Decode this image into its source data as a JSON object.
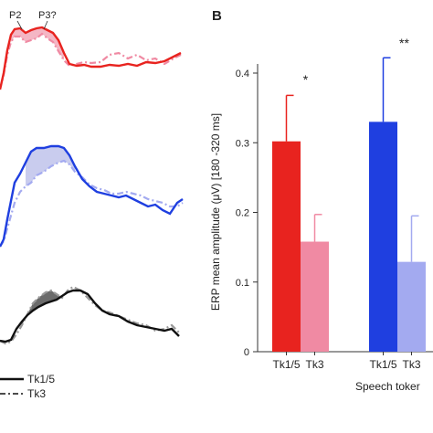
{
  "panel_b_label": "B",
  "colors": {
    "red": "#e8231f",
    "pink": "#f08aa3",
    "blue": "#1f3fe0",
    "lightblue": "#a3aaf0",
    "black": "#111111",
    "gray": "#9a9a9a",
    "red_fill": "#f4b6c4",
    "blue_fill": "#c9ccee",
    "gray_fill": "#6b6b6b"
  },
  "panel_a": {
    "peak_labels": [
      "P2",
      "P3?"
    ],
    "legend": [
      {
        "label": "Tk1/5",
        "style": "solid"
      },
      {
        "label": "Tk3",
        "style": "dash-dot"
      }
    ]
  },
  "chart_data": {
    "type": "bar",
    "ylabel": "ERP mean amplitude (μV) [180 -320 ms]",
    "xlabel": "Speech toker",
    "ylim": [
      0,
      0.4
    ],
    "yticks": [
      "0",
      "0.1",
      "0.2",
      "0.3",
      "0.4"
    ],
    "groups": [
      {
        "bars": [
          {
            "label": "Tk1/5",
            "value": 0.302,
            "error": 0.066,
            "color": "#e8231f"
          },
          {
            "label": "Tk3",
            "value": 0.158,
            "error": 0.039,
            "color": "#f08aa3"
          }
        ],
        "significance": "*"
      },
      {
        "bars": [
          {
            "label": "Tk1/5",
            "value": 0.33,
            "error": 0.092,
            "color": "#1f3fe0"
          },
          {
            "label": "Tk3",
            "value": 0.129,
            "error": 0.066,
            "color": "#a3aaf0"
          }
        ],
        "significance": "**"
      }
    ]
  }
}
